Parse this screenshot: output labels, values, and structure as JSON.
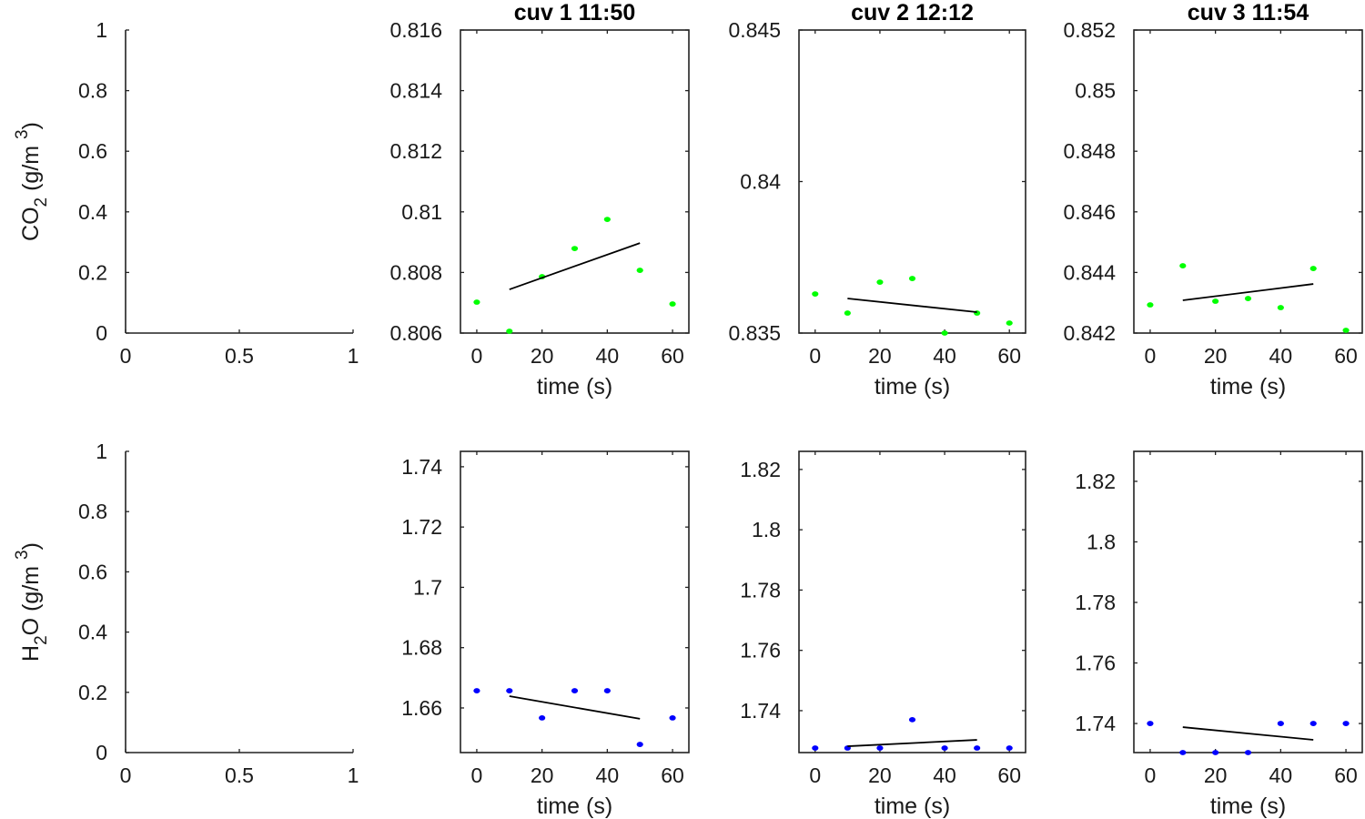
{
  "chart_data": [
    {
      "type": "line",
      "panel": "empty",
      "row": "CO2",
      "title": "",
      "xlabel": "",
      "ylabel": "CO2 (g/m 3)",
      "ylabel_parts": {
        "main": "CO",
        "sub": "2",
        "unit": " (g/m ",
        "sup": "3",
        "close": ")"
      },
      "xlim": [
        0,
        1
      ],
      "ylim": [
        0,
        1
      ],
      "xticks": [
        0,
        0.5,
        1
      ],
      "xtick_labels": [
        "0",
        "0.5",
        "1"
      ],
      "yticks": [
        0,
        0.2,
        0.4,
        0.6,
        0.8,
        1
      ],
      "ytick_labels": [
        "0",
        "0.2",
        "0.4",
        "0.6",
        "0.8",
        "1"
      ],
      "series": []
    },
    {
      "type": "scatter",
      "row": "CO2",
      "title": "cuv 1 11:50",
      "xlabel": "time (s)",
      "ylabel": "",
      "xlim": [
        -5,
        65
      ],
      "ylim": [
        0.806,
        0.816
      ],
      "xticks": [
        0,
        20,
        40,
        60
      ],
      "xtick_labels": [
        "0",
        "20",
        "40",
        "60"
      ],
      "yticks": [
        0.806,
        0.808,
        0.81,
        0.812,
        0.814,
        0.816
      ],
      "ytick_labels": [
        "0.806",
        "0.808",
        "0.81",
        "0.812",
        "0.814",
        "0.816"
      ],
      "series": [
        {
          "name": "measurements",
          "color": "#00ff00",
          "kind": "points",
          "x": [
            0,
            10,
            20,
            30,
            40,
            50,
            60
          ],
          "y": [
            0.80702,
            0.80606,
            0.80786,
            0.80879,
            0.80975,
            0.80807,
            0.80696
          ]
        },
        {
          "name": "fit",
          "color": "#000000",
          "kind": "line",
          "x": [
            10,
            50
          ],
          "y": [
            0.80744,
            0.80897
          ]
        }
      ]
    },
    {
      "type": "scatter",
      "row": "CO2",
      "title": "cuv 2 12:12",
      "xlabel": "time (s)",
      "ylabel": "",
      "xlim": [
        -5,
        65
      ],
      "ylim": [
        0.835,
        0.845
      ],
      "xticks": [
        0,
        20,
        40,
        60
      ],
      "xtick_labels": [
        "0",
        "20",
        "40",
        "60"
      ],
      "yticks": [
        0.835,
        0.84,
        0.845
      ],
      "ytick_labels": [
        "0.835",
        "0.84",
        "0.845"
      ],
      "series": [
        {
          "name": "measurements",
          "color": "#00ff00",
          "kind": "points",
          "x": [
            0,
            10,
            20,
            30,
            40,
            50,
            60
          ],
          "y": [
            0.83629,
            0.83566,
            0.83668,
            0.8368,
            0.835,
            0.83566,
            0.83533
          ]
        },
        {
          "name": "fit",
          "color": "#000000",
          "kind": "line",
          "x": [
            10,
            50
          ],
          "y": [
            0.83614,
            0.83569
          ]
        }
      ]
    },
    {
      "type": "scatter",
      "row": "CO2",
      "title": "cuv 3 11:54",
      "xlabel": "time (s)",
      "ylabel": "",
      "xlim": [
        -5,
        65
      ],
      "ylim": [
        0.842,
        0.852
      ],
      "xticks": [
        0,
        20,
        40,
        60
      ],
      "xtick_labels": [
        "0",
        "20",
        "40",
        "60"
      ],
      "yticks": [
        0.842,
        0.844,
        0.846,
        0.848,
        0.85,
        0.852
      ],
      "ytick_labels": [
        "0.842",
        "0.844",
        "0.846",
        "0.848",
        "0.85",
        "0.852"
      ],
      "series": [
        {
          "name": "measurements",
          "color": "#00ff00",
          "kind": "points",
          "x": [
            0,
            10,
            20,
            30,
            40,
            50,
            60
          ],
          "y": [
            0.84293,
            0.84422,
            0.84305,
            0.84314,
            0.84284,
            0.84413,
            0.84209
          ]
        },
        {
          "name": "fit",
          "color": "#000000",
          "kind": "line",
          "x": [
            10,
            50
          ],
          "y": [
            0.84308,
            0.84362
          ]
        }
      ]
    },
    {
      "type": "line",
      "panel": "empty",
      "row": "H2O",
      "title": "",
      "xlabel": "",
      "ylabel": "H2O (g/m 3)",
      "ylabel_parts": {
        "main": "H",
        "sub": "2",
        "main2": "O",
        "unit": " (g/m ",
        "sup": "3",
        "close": ")"
      },
      "xlim": [
        0,
        1
      ],
      "ylim": [
        0,
        1
      ],
      "xticks": [
        0,
        0.5,
        1
      ],
      "xtick_labels": [
        "0",
        "0.5",
        "1"
      ],
      "yticks": [
        0,
        0.2,
        0.4,
        0.6,
        0.8,
        1
      ],
      "ytick_labels": [
        "0",
        "0.2",
        "0.4",
        "0.6",
        "0.8",
        "1"
      ],
      "series": []
    },
    {
      "type": "scatter",
      "row": "H2O",
      "title": "",
      "xlabel": "time (s)",
      "ylabel": "",
      "xlim": [
        -5,
        65
      ],
      "ylim": [
        1.6452,
        1.7451
      ],
      "xticks": [
        0,
        20,
        40,
        60
      ],
      "xtick_labels": [
        "0",
        "20",
        "40",
        "60"
      ],
      "yticks": [
        1.66,
        1.68,
        1.7,
        1.72,
        1.74
      ],
      "ytick_labels": [
        "1.66",
        "1.68",
        "1.7",
        "1.72",
        "1.74"
      ],
      "series": [
        {
          "name": "measurements",
          "color": "#0000ff",
          "kind": "points",
          "x": [
            0,
            10,
            20,
            30,
            40,
            50,
            60
          ],
          "y": [
            1.6657,
            1.6657,
            1.6567,
            1.6657,
            1.6657,
            1.6479,
            1.6567
          ]
        },
        {
          "name": "fit",
          "color": "#000000",
          "kind": "line",
          "x": [
            10,
            50
          ],
          "y": [
            1.6639,
            1.6564
          ]
        }
      ]
    },
    {
      "type": "scatter",
      "row": "H2O",
      "title": "",
      "xlabel": "time (s)",
      "ylabel": "",
      "xlim": [
        -5,
        65
      ],
      "ylim": [
        1.7261,
        1.826
      ],
      "xticks": [
        0,
        20,
        40,
        60
      ],
      "xtick_labels": [
        "0",
        "20",
        "40",
        "60"
      ],
      "yticks": [
        1.74,
        1.76,
        1.78,
        1.8,
        1.82
      ],
      "ytick_labels": [
        "1.74",
        "1.76",
        "1.78",
        "1.8",
        "1.82"
      ],
      "series": [
        {
          "name": "measurements",
          "color": "#0000ff",
          "kind": "points",
          "x": [
            0,
            10,
            20,
            30,
            40,
            50,
            60
          ],
          "y": [
            1.7276,
            1.7276,
            1.7276,
            1.737,
            1.7276,
            1.7276,
            1.7276
          ]
        },
        {
          "name": "fit",
          "color": "#000000",
          "kind": "line",
          "x": [
            10,
            50
          ],
          "y": [
            1.7282,
            1.7303
          ]
        }
      ]
    },
    {
      "type": "scatter",
      "row": "H2O",
      "title": "",
      "xlabel": "time (s)",
      "ylabel": "",
      "xlim": [
        -5,
        65
      ],
      "ylim": [
        1.7304,
        1.8299
      ],
      "xticks": [
        0,
        20,
        40,
        60
      ],
      "xtick_labels": [
        "0",
        "20",
        "40",
        "60"
      ],
      "yticks": [
        1.74,
        1.76,
        1.78,
        1.8,
        1.82
      ],
      "ytick_labels": [
        "1.74",
        "1.76",
        "1.78",
        "1.8",
        "1.82"
      ],
      "series": [
        {
          "name": "measurements",
          "color": "#0000ff",
          "kind": "points",
          "x": [
            0,
            10,
            20,
            30,
            40,
            50,
            60
          ],
          "y": [
            1.74,
            1.7304,
            1.7304,
            1.7304,
            1.74,
            1.74,
            1.74
          ]
        },
        {
          "name": "fit",
          "color": "#000000",
          "kind": "line",
          "x": [
            10,
            50
          ],
          "y": [
            1.7388,
            1.7346
          ]
        }
      ]
    }
  ]
}
